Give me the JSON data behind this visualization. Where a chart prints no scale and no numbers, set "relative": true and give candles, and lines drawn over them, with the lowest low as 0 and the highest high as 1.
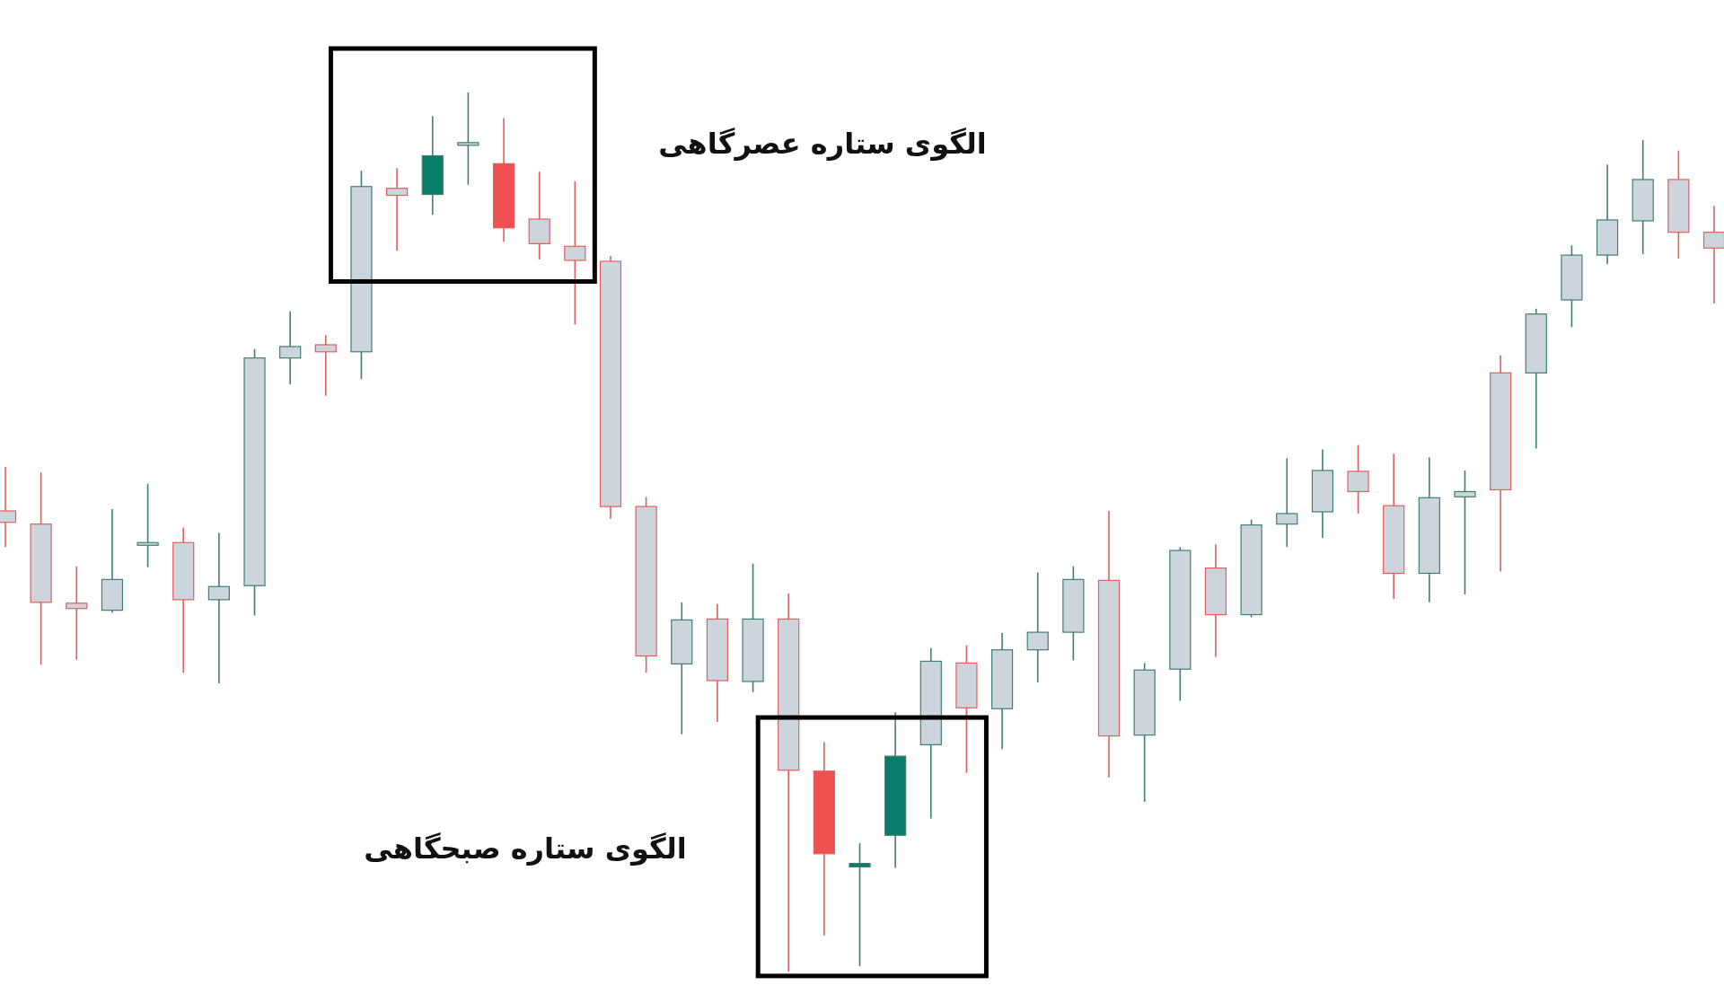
{
  "chart_data": {
    "type": "candlestick",
    "relative": true,
    "categories": [
      null,
      null,
      null,
      null,
      null,
      null,
      null,
      null,
      null,
      null,
      null,
      null,
      null,
      null,
      null,
      null,
      null,
      null,
      null,
      null,
      null,
      null,
      null,
      null,
      null,
      null,
      null,
      null,
      null,
      null,
      null,
      null,
      null,
      null,
      null,
      null,
      null,
      null,
      null,
      null,
      null,
      null,
      null,
      null,
      null,
      null,
      null,
      null,
      null
    ],
    "ohlc": [
      [
        0.524,
        0.574,
        0.483,
        0.511
      ],
      [
        0.509,
        0.568,
        0.349,
        0.42
      ],
      [
        0.419,
        0.461,
        0.355,
        0.413
      ],
      [
        0.411,
        0.526,
        0.408,
        0.446
      ],
      [
        0.486,
        0.555,
        0.46,
        0.488
      ],
      [
        0.488,
        0.505,
        0.34,
        0.423
      ],
      [
        0.423,
        0.499,
        0.328,
        0.438
      ],
      [
        0.439,
        0.708,
        0.405,
        0.698
      ],
      [
        0.698,
        0.751,
        0.668,
        0.711
      ],
      [
        0.713,
        0.724,
        0.655,
        0.705
      ],
      [
        0.705,
        0.911,
        0.674,
        0.893
      ],
      [
        0.891,
        0.914,
        0.82,
        0.883
      ],
      [
        0.884,
        0.973,
        0.861,
        0.928
      ],
      [
        0.941,
        1.0,
        0.895,
        0.943
      ],
      [
        0.919,
        0.971,
        0.83,
        0.846
      ],
      [
        0.856,
        0.91,
        0.81,
        0.828
      ],
      [
        0.825,
        0.899,
        0.736,
        0.809
      ],
      [
        0.808,
        0.814,
        0.515,
        0.529
      ],
      [
        0.529,
        0.54,
        0.34,
        0.359
      ],
      [
        0.35,
        0.42,
        0.27,
        0.4
      ],
      [
        0.401,
        0.418,
        0.284,
        0.331
      ],
      [
        0.33,
        0.464,
        0.318,
        0.401
      ],
      [
        0.401,
        0.43,
        0.0,
        0.229
      ],
      [
        0.228,
        0.261,
        0.041,
        0.134
      ],
      [
        0.119,
        0.146,
        0.006,
        0.123
      ],
      [
        0.155,
        0.295,
        0.118,
        0.245
      ],
      [
        0.258,
        0.368,
        0.174,
        0.353
      ],
      [
        0.351,
        0.371,
        0.226,
        0.3
      ],
      [
        0.299,
        0.385,
        0.253,
        0.366
      ],
      [
        0.366,
        0.454,
        0.329,
        0.386
      ],
      [
        0.386,
        0.461,
        0.354,
        0.446
      ],
      [
        0.445,
        0.524,
        0.221,
        0.268
      ],
      [
        0.269,
        0.351,
        0.193,
        0.343
      ],
      [
        0.344,
        0.483,
        0.308,
        0.479
      ],
      [
        0.459,
        0.486,
        0.358,
        0.406
      ],
      [
        0.406,
        0.514,
        0.403,
        0.508
      ],
      [
        0.509,
        0.584,
        0.483,
        0.521
      ],
      [
        0.523,
        0.594,
        0.493,
        0.57
      ],
      [
        0.569,
        0.599,
        0.521,
        0.546
      ],
      [
        0.53,
        0.589,
        0.424,
        0.453
      ],
      [
        0.453,
        0.585,
        0.42,
        0.539
      ],
      [
        0.54,
        0.57,
        0.429,
        0.546
      ],
      [
        0.681,
        0.701,
        0.455,
        0.548
      ],
      [
        0.681,
        0.754,
        0.595,
        0.748
      ],
      [
        0.764,
        0.826,
        0.733,
        0.815
      ],
      [
        0.815,
        0.918,
        0.805,
        0.855
      ],
      [
        0.854,
        0.946,
        0.816,
        0.901
      ],
      [
        0.901,
        0.934,
        0.811,
        0.841
      ],
      [
        0.841,
        0.871,
        0.76,
        0.823
      ]
    ],
    "colors": [
      "#cdd5dc",
      "#cdd5dc",
      "#cdd5dc",
      "#cdd5dc",
      "#cdd5dc",
      "#cdd5dc",
      "#cdd5dc",
      "#cdd5dc",
      "#cdd5dc",
      "#cdd5dc",
      "#cdd5dc",
      "#cdd5dc",
      "#087d6a",
      "#cdd5dc",
      "#ee4f4f",
      "#cdd5dc",
      "#cdd5dc",
      "#cdd5dc",
      "#cdd5dc",
      "#cdd5dc",
      "#cdd5dc",
      "#cdd5dc",
      "#cdd5dc",
      "#ee4f4f",
      "#087d6a",
      "#087d6a",
      "#cdd5dc",
      "#cdd5dc",
      "#cdd5dc",
      "#cdd5dc",
      "#cdd5dc",
      "#cdd5dc",
      "#cdd5dc",
      "#cdd5dc",
      "#cdd5dc",
      "#cdd5dc",
      "#cdd5dc",
      "#cdd5dc",
      "#cdd5dc",
      "#cdd5dc",
      "#cdd5dc",
      "#cdd5dc",
      "#cdd5dc",
      "#cdd5dc",
      "#cdd5dc",
      "#cdd5dc",
      "#cdd5dc",
      "#cdd5dc",
      "#cdd5dc"
    ],
    "annotations": [
      "الگوی ستاره عصرگاهی",
      "الگوی ستاره صبحگاهی"
    ]
  }
}
